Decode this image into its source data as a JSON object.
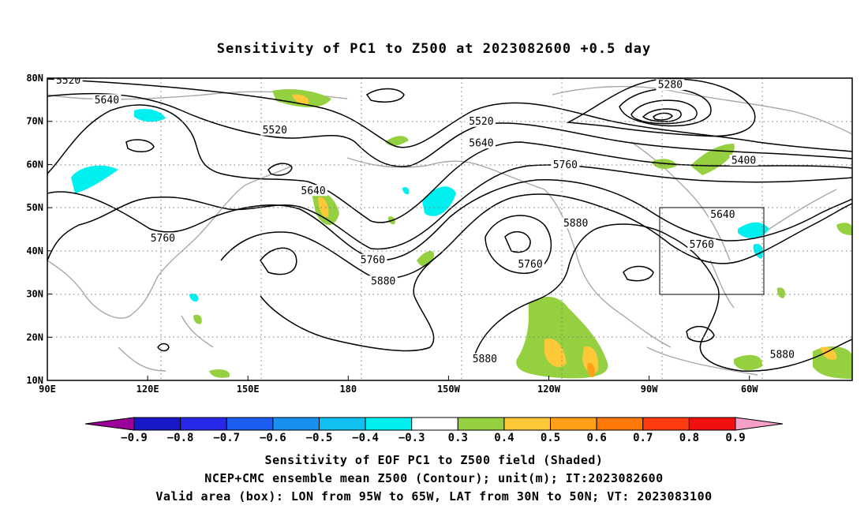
{
  "title": "Sensitivity of PC1 to Z500 at 2023082600 +0.5 day",
  "lon_ticks": [
    "90E",
    "120E",
    "150E",
    "180",
    "150W",
    "120W",
    "90W",
    "60W"
  ],
  "lat_ticks": [
    "80N",
    "70N",
    "60N",
    "50N",
    "40N",
    "30N",
    "20N",
    "10N"
  ],
  "contour_labels": [
    {
      "text": "5520",
      "lon": 96,
      "lat": 79.5
    },
    {
      "text": "5640",
      "lon": 107,
      "lat": 75
    },
    {
      "text": "5520",
      "lon": 155,
      "lat": 68
    },
    {
      "text": "5640",
      "lon": 166,
      "lat": 54
    },
    {
      "text": "5760",
      "lon": 123,
      "lat": 43
    },
    {
      "text": "5760",
      "lon": 183,
      "lat": 38
    },
    {
      "text": "5880",
      "lon": 186,
      "lat": 33
    },
    {
      "text": "5520",
      "lon": -146,
      "lat": 70
    },
    {
      "text": "5640",
      "lon": -146,
      "lat": 65
    },
    {
      "text": "5760",
      "lon": -122,
      "lat": 60
    },
    {
      "text": "5280",
      "lon": -92,
      "lat": 78.5
    },
    {
      "text": "5400",
      "lon": -71,
      "lat": 61
    },
    {
      "text": "5640",
      "lon": -77,
      "lat": 48.5
    },
    {
      "text": "5760",
      "lon": -83,
      "lat": 41.5
    },
    {
      "text": "5880",
      "lon": -119,
      "lat": 46.5
    },
    {
      "text": "5760",
      "lon": -132,
      "lat": 37
    },
    {
      "text": "5880",
      "lon": -145,
      "lat": 15
    },
    {
      "text": "5880",
      "lon": -60,
      "lat": 16
    }
  ],
  "colorbar": {
    "colors": [
      "#9b009b",
      "#1818c8",
      "#2828e8",
      "#1c5cf0",
      "#1890f0",
      "#10c0f0",
      "#00f0f0",
      "#ffffff",
      "#94d040",
      "#ffc838",
      "#ffa018",
      "#ff7808",
      "#ff3c10",
      "#f01010",
      "#f5a0c8"
    ],
    "labels": [
      "−0.9",
      "−0.8",
      "−0.7",
      "−0.6",
      "−0.5",
      "−0.4",
      "−0.3",
      "0.3",
      "0.4",
      "0.5",
      "0.6",
      "0.7",
      "0.8",
      "0.9"
    ]
  },
  "footer": [
    "Sensitivity of EOF PC1 to Z500 field (Shaded)",
    "NCEP+CMC ensemble mean Z500 (Contour); unit(m); IT:2023082600",
    "Valid area (box): LON from 95W to 65W, LAT from 30N to 50N; VT: 2023083100"
  ]
}
